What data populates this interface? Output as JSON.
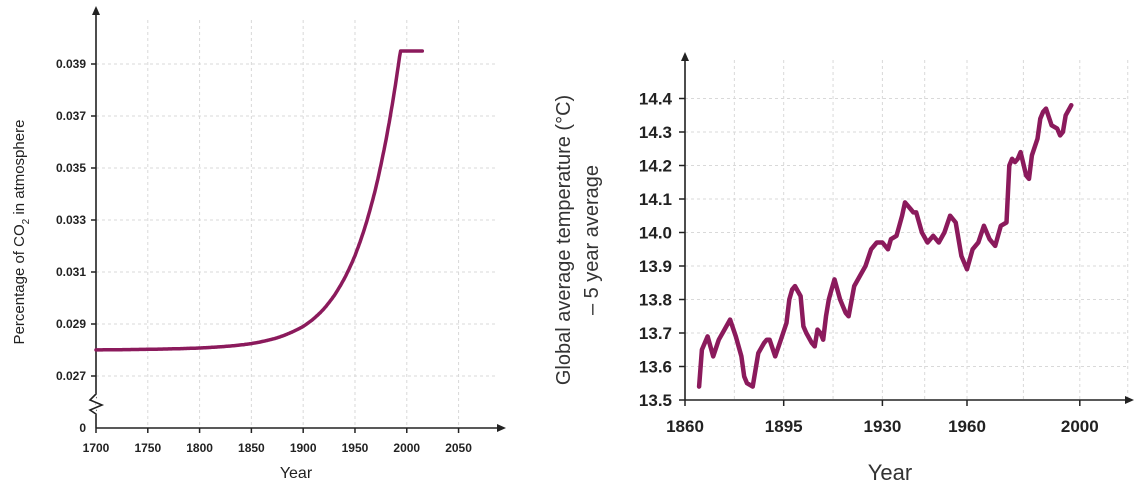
{
  "chart_data": [
    {
      "type": "line",
      "title": "",
      "xlabel": "Year",
      "ylabel_main": "Percentage of CO",
      "ylabel_sub": "2",
      "ylabel_tail": " in atmosphere",
      "xlim": [
        1700,
        2090
      ],
      "ylim": [
        0.026,
        0.0405
      ],
      "axis_break": true,
      "x_ticks": [
        1700,
        1750,
        1800,
        1850,
        1900,
        1950,
        2000,
        2050
      ],
      "y_ticks": [
        0.027,
        0.029,
        0.031,
        0.033,
        0.035,
        0.037,
        0.039
      ],
      "y_tick_labels": [
        "0.027",
        "0.029",
        "0.031",
        "0.033",
        "0.035",
        "0.037",
        "0.039"
      ],
      "y_zero_label": "0",
      "grid": true,
      "line_color": "#8b1a5c",
      "series": [
        {
          "x": [
            1700,
            1750,
            1800,
            1850,
            1875,
            1900,
            1910,
            1920,
            1930,
            1940,
            1950,
            1960,
            1970,
            1980,
            1990,
            2000,
            2010,
            2015
          ],
          "values": [
            0.028,
            0.02805,
            0.0281,
            0.0282,
            0.02835,
            0.02865,
            0.0289,
            0.02925,
            0.02975,
            0.0304,
            0.0312,
            0.0323,
            0.0336,
            0.0352,
            0.0369,
            0.0387,
            0.0388,
            0.0395
          ]
        }
      ]
    },
    {
      "type": "line",
      "title": "",
      "xlabel": "Year",
      "ylabel_line1": "Global average temperature (°C)",
      "ylabel_line2": "– 5 year average",
      "xlim": [
        1860,
        2010
      ],
      "ylim": [
        13.5,
        14.45
      ],
      "x_ticks": [
        1860,
        1895,
        1930,
        1960,
        2000
      ],
      "y_ticks": [
        13.5,
        13.6,
        13.7,
        13.8,
        13.9,
        14.0,
        14.1,
        14.2,
        14.3,
        14.4
      ],
      "y_tick_labels": [
        "13.5",
        "13.6",
        "13.7",
        "13.8",
        "13.9",
        "14.0",
        "14.1",
        "14.2",
        "14.3",
        "14.4"
      ],
      "grid": true,
      "line_color": "#8b1a5c",
      "series": [
        {
          "x": [
            1865,
            1866,
            1868,
            1870,
            1872,
            1874,
            1876,
            1878,
            1880,
            1881,
            1882,
            1884,
            1886,
            1888,
            1889,
            1890,
            1892,
            1894,
            1896,
            1897,
            1898,
            1899,
            1901,
            1902,
            1903,
            1905,
            1906,
            1907,
            1908,
            1909,
            1910,
            1911,
            1912,
            1913,
            1915,
            1916,
            1917,
            1918,
            1920,
            1922,
            1924,
            1926,
            1928,
            1929,
            1930,
            1931,
            1932,
            1933,
            1935,
            1936,
            1937,
            1938,
            1939,
            1940,
            1941,
            1942,
            1944,
            1946,
            1948,
            1950,
            1952,
            1954,
            1956,
            1958,
            1960,
            1962,
            1964,
            1966,
            1968,
            1970,
            1972,
            1974,
            1975,
            1976,
            1977,
            1978,
            1979,
            1981,
            1982,
            1983,
            1985,
            1986,
            1987,
            1988,
            1990,
            1992,
            1993,
            1994,
            1995,
            1997
          ],
          "values": [
            13.54,
            13.65,
            13.69,
            13.63,
            13.68,
            13.71,
            13.74,
            13.69,
            13.63,
            13.57,
            13.55,
            13.54,
            13.64,
            13.67,
            13.68,
            13.68,
            13.63,
            13.68,
            13.73,
            13.8,
            13.83,
            13.84,
            13.81,
            13.72,
            13.7,
            13.67,
            13.66,
            13.71,
            13.7,
            13.68,
            13.75,
            13.8,
            13.83,
            13.86,
            13.8,
            13.78,
            13.76,
            13.75,
            13.84,
            13.87,
            13.9,
            13.95,
            13.97,
            13.97,
            13.97,
            13.96,
            13.95,
            13.98,
            13.99,
            14.02,
            14.05,
            14.09,
            14.08,
            14.07,
            14.06,
            14.06,
            14.0,
            13.97,
            13.99,
            13.97,
            14.0,
            14.05,
            14.03,
            13.93,
            13.89,
            13.95,
            13.97,
            14.02,
            13.98,
            13.96,
            14.02,
            14.03,
            14.2,
            14.22,
            14.21,
            14.22,
            14.24,
            14.17,
            14.16,
            14.23,
            14.28,
            14.34,
            14.36,
            14.37,
            14.32,
            14.31,
            14.29,
            14.3,
            14.35,
            14.38
          ]
        }
      ]
    }
  ]
}
